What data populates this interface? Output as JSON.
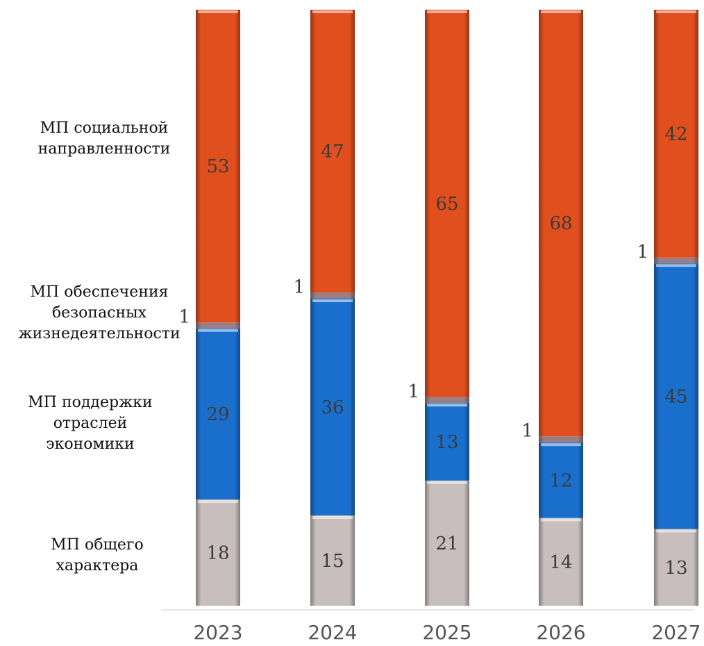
{
  "chart_data": {
    "type": "bar",
    "stacked": true,
    "categories": [
      "2023",
      "2024",
      "2025",
      "2026",
      "2027"
    ],
    "series": [
      {
        "name": "МП общего характера",
        "values": [
          18,
          15,
          21,
          14,
          13
        ],
        "color": "#c8bebe"
      },
      {
        "name": "МП поддержки отраслей экономики",
        "values": [
          29,
          36,
          13,
          12,
          45
        ],
        "color": "#1a6fcc"
      },
      {
        "name": "МП обеспечения безопасных жизнедеятельности",
        "values": [
          1,
          1,
          1,
          1,
          1
        ],
        "color": "#9a7e86"
      },
      {
        "name": "МП социальной направленности",
        "values": [
          53,
          47,
          65,
          68,
          42
        ],
        "color": "#e24f1e"
      }
    ],
    "legend_position": "left"
  },
  "legend": {
    "social": [
      "МП социальной",
      "направленности"
    ],
    "safety": [
      "МП обеспечения",
      "безопасных",
      "жизнедеятельности"
    ],
    "economy": [
      "МП поддержки",
      "отраслей",
      "экономики"
    ],
    "general": [
      "МП общего",
      "характера"
    ]
  }
}
